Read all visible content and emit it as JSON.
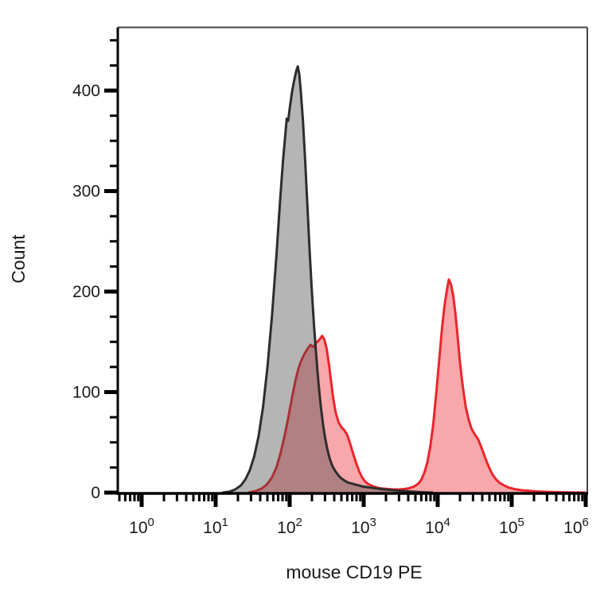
{
  "figure": {
    "kind": "flow-cytometry-histogram-overlay"
  },
  "chart_data": {
    "type": "area",
    "title": "",
    "xlabel": "mouse CD19 PE",
    "ylabel": "Count",
    "x_scale": "log10",
    "x_decades": [
      0,
      1,
      2,
      3,
      4,
      5,
      6
    ],
    "x_tick_base": "10",
    "xlim_log": [
      -0.32,
      6.02
    ],
    "y_major_ticks": [
      0,
      100,
      200,
      300,
      400
    ],
    "y_minor_step": 25,
    "y_minor_max": 450,
    "ylim": [
      0,
      462
    ],
    "grid": false,
    "legend": "none",
    "series": [
      {
        "name": "red-filled histogram (stained)",
        "z": 0,
        "stroke": "#e8262c",
        "fill": "rgba(238,36,42,0.40)",
        "peaks": [
          {
            "x": 275,
            "count": 156
          },
          {
            "x": 14100,
            "count": 212
          }
        ],
        "points": [
          [
            1.44,
            0
          ],
          [
            1.54,
            1.5
          ],
          [
            1.62,
            4
          ],
          [
            1.69,
            8
          ],
          [
            1.76,
            15
          ],
          [
            1.82,
            25
          ],
          [
            1.88,
            40
          ],
          [
            1.93,
            56
          ],
          [
            1.98,
            74
          ],
          [
            2.03,
            94
          ],
          [
            2.08,
            112
          ],
          [
            2.12,
            124
          ],
          [
            2.16,
            132
          ],
          [
            2.2,
            138
          ],
          [
            2.24,
            143
          ],
          [
            2.28,
            147
          ],
          [
            2.32,
            145
          ],
          [
            2.36,
            149
          ],
          [
            2.4,
            152
          ],
          [
            2.44,
            156
          ],
          [
            2.47,
            152
          ],
          [
            2.5,
            143
          ],
          [
            2.53,
            128
          ],
          [
            2.56,
            110
          ],
          [
            2.59,
            93
          ],
          [
            2.62,
            80
          ],
          [
            2.66,
            70
          ],
          [
            2.7,
            65
          ],
          [
            2.74,
            62
          ],
          [
            2.78,
            57
          ],
          [
            2.82,
            48
          ],
          [
            2.86,
            38
          ],
          [
            2.9,
            29
          ],
          [
            2.94,
            21
          ],
          [
            2.98,
            15
          ],
          [
            3.02,
            11
          ],
          [
            3.06,
            8.5
          ],
          [
            3.12,
            6.5
          ],
          [
            3.18,
            5
          ],
          [
            3.24,
            4.2
          ],
          [
            3.32,
            3.6
          ],
          [
            3.4,
            3.2
          ],
          [
            3.48,
            3.2
          ],
          [
            3.56,
            3.6
          ],
          [
            3.62,
            4.5
          ],
          [
            3.68,
            6
          ],
          [
            3.74,
            9
          ],
          [
            3.78,
            13
          ],
          [
            3.82,
            20
          ],
          [
            3.86,
            30
          ],
          [
            3.9,
            46
          ],
          [
            3.94,
            68
          ],
          [
            3.98,
            98
          ],
          [
            4.02,
            132
          ],
          [
            4.06,
            165
          ],
          [
            4.09,
            185
          ],
          [
            4.12,
            200
          ],
          [
            4.15,
            212
          ],
          [
            4.18,
            207
          ],
          [
            4.21,
            196
          ],
          [
            4.24,
            178
          ],
          [
            4.27,
            155
          ],
          [
            4.3,
            130
          ],
          [
            4.34,
            105
          ],
          [
            4.38,
            85
          ],
          [
            4.42,
            72
          ],
          [
            4.46,
            63
          ],
          [
            4.5,
            58
          ],
          [
            4.54,
            54
          ],
          [
            4.58,
            47
          ],
          [
            4.62,
            39
          ],
          [
            4.66,
            31
          ],
          [
            4.7,
            24
          ],
          [
            4.74,
            18
          ],
          [
            4.79,
            13
          ],
          [
            4.84,
            9.5
          ],
          [
            4.9,
            7
          ],
          [
            4.96,
            5
          ],
          [
            5.04,
            3.5
          ],
          [
            5.14,
            2.4
          ],
          [
            5.24,
            1.7
          ],
          [
            5.36,
            1.1
          ],
          [
            5.49,
            0.7
          ],
          [
            5.64,
            0.4
          ],
          [
            5.84,
            0.1
          ],
          [
            6.0,
            0
          ]
        ]
      },
      {
        "name": "gray-filled histogram (control)",
        "z": 1,
        "stroke": "#2d2d2d",
        "fill": "rgba(70,70,70,0.40)",
        "peaks": [
          {
            "x": 129,
            "count": 424
          }
        ],
        "points": [
          [
            1.09,
            0
          ],
          [
            1.19,
            1
          ],
          [
            1.26,
            3
          ],
          [
            1.34,
            7
          ],
          [
            1.4,
            13
          ],
          [
            1.46,
            22
          ],
          [
            1.52,
            36
          ],
          [
            1.58,
            56
          ],
          [
            1.64,
            85
          ],
          [
            1.7,
            125
          ],
          [
            1.76,
            175
          ],
          [
            1.82,
            235
          ],
          [
            1.87,
            290
          ],
          [
            1.91,
            330
          ],
          [
            1.94,
            355
          ],
          [
            1.96,
            372
          ],
          [
            1.98,
            370
          ],
          [
            2.0,
            382
          ],
          [
            2.03,
            398
          ],
          [
            2.06,
            410
          ],
          [
            2.09,
            420
          ],
          [
            2.11,
            424
          ],
          [
            2.13,
            416
          ],
          [
            2.15,
            400
          ],
          [
            2.18,
            370
          ],
          [
            2.21,
            330
          ],
          [
            2.24,
            285
          ],
          [
            2.27,
            240
          ],
          [
            2.3,
            200
          ],
          [
            2.33,
            165
          ],
          [
            2.36,
            135
          ],
          [
            2.39,
            108
          ],
          [
            2.42,
            86
          ],
          [
            2.45,
            68
          ],
          [
            2.48,
            54
          ],
          [
            2.51,
            43
          ],
          [
            2.54,
            34
          ],
          [
            2.58,
            26
          ],
          [
            2.62,
            21
          ],
          [
            2.66,
            17
          ],
          [
            2.7,
            14
          ],
          [
            2.74,
            12
          ],
          [
            2.79,
            10
          ],
          [
            2.84,
            9
          ],
          [
            2.89,
            8
          ],
          [
            2.94,
            7
          ],
          [
            2.99,
            6
          ],
          [
            3.04,
            5.5
          ],
          [
            3.09,
            5
          ],
          [
            3.14,
            4.5
          ],
          [
            3.19,
            4
          ],
          [
            3.24,
            3.5
          ],
          [
            3.34,
            2.8
          ],
          [
            3.44,
            2.2
          ],
          [
            3.54,
            1.6
          ],
          [
            3.64,
            1.1
          ],
          [
            3.74,
            0.6
          ],
          [
            3.84,
            0.2
          ],
          [
            3.94,
            0
          ]
        ]
      }
    ]
  },
  "colors": {
    "background": "#ffffff",
    "axis": "#000000",
    "frame": "#454545",
    "tick_label": "#1a1a1a",
    "gray_stroke": "#2d2d2d",
    "gray_fill": "rgba(70,70,70,0.40)",
    "red_stroke": "#e8262c",
    "red_fill": "rgba(238,36,42,0.40)"
  }
}
